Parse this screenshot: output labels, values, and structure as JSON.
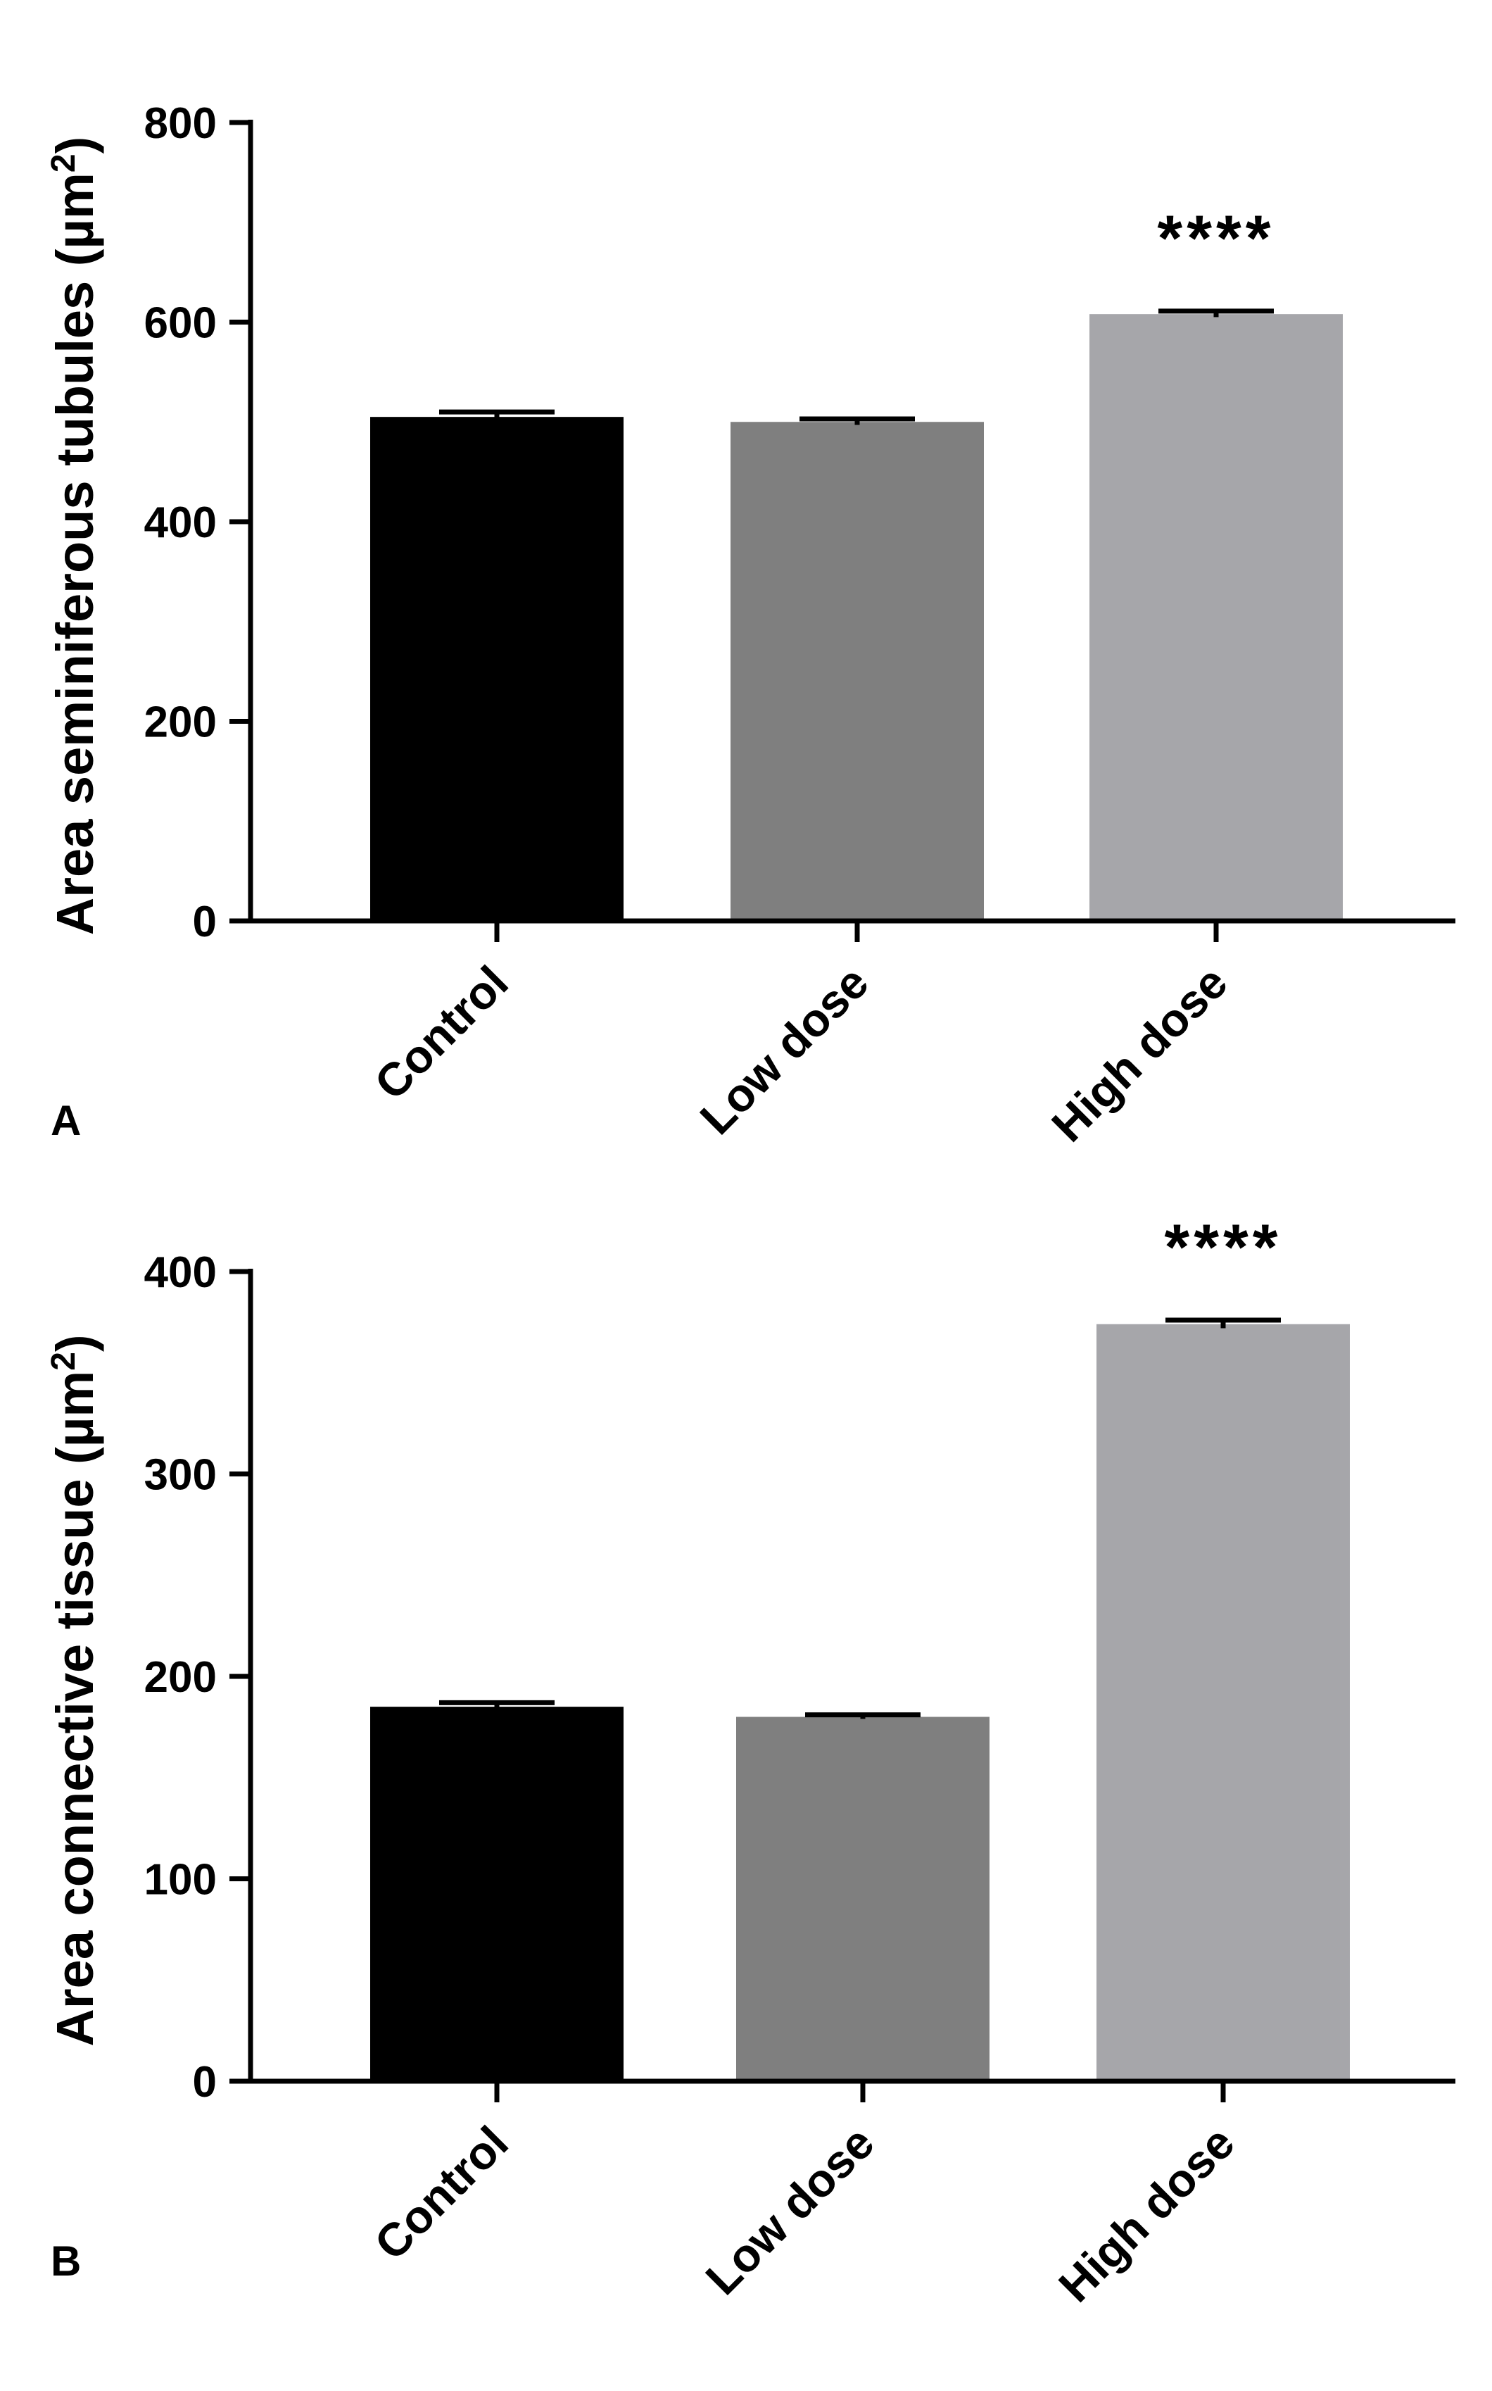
{
  "chart_data": [
    {
      "type": "bar",
      "panel_label": "A",
      "ylabel": "Area seminiferous tubules (µm",
      "ylabel_superscript": "2",
      "ylabel_close": ")",
      "categories": [
        "Control",
        "Low dose",
        "High dose"
      ],
      "values": [
        505,
        500,
        608
      ],
      "errors": [
        5,
        3,
        3
      ],
      "colors": [
        "#000000",
        "#7f7f7f",
        "#a6a6aa"
      ],
      "annotations": [
        "",
        "",
        "****"
      ],
      "ylim": [
        0,
        800
      ],
      "yticks": [
        0,
        200,
        400,
        600,
        800
      ],
      "grid": false,
      "legend": "none"
    },
    {
      "type": "bar",
      "panel_label": "B",
      "ylabel": "Area connective tissue (µm",
      "ylabel_superscript": "2",
      "ylabel_close": ")",
      "categories": [
        "Control",
        "Low dose",
        "High dose"
      ],
      "values": [
        185,
        180,
        374
      ],
      "errors": [
        2,
        1,
        2
      ],
      "colors": [
        "#000000",
        "#7f7f7f",
        "#a6a6aa"
      ],
      "annotations": [
        "",
        "",
        "****"
      ],
      "ylim": [
        0,
        400
      ],
      "yticks": [
        0,
        100,
        200,
        300,
        400
      ],
      "grid": false,
      "legend": "none"
    }
  ]
}
